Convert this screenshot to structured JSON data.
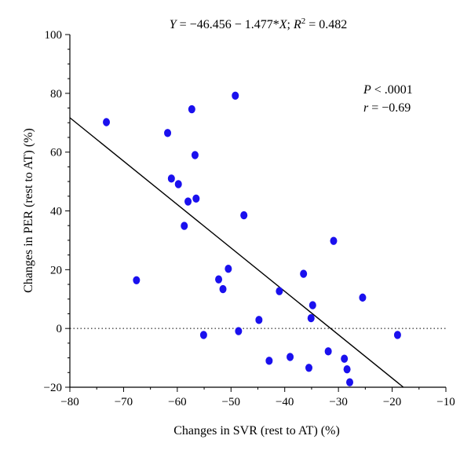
{
  "chart_data": {
    "type": "scatter",
    "title_parts": {
      "y": "Y",
      "eq_mid": " = −46.456 − 1.477*",
      "x": "X",
      "sep": "; ",
      "r": "R",
      "sup": "2",
      "tail": " = 0.482"
    },
    "xlabel": "Changes in SVR (rest to AT) (%)",
    "ylabel": "Changes in PER (rest to AT) (%)",
    "xlim": [
      -80,
      -10
    ],
    "ylim": [
      -20,
      100
    ],
    "xticks": [
      -80,
      -70,
      -60,
      -50,
      -40,
      -30,
      -20,
      -10
    ],
    "yticks": [
      -20,
      0,
      20,
      40,
      60,
      80,
      100
    ],
    "xtick_labels": [
      "−80",
      "−70",
      "−60",
      "−50",
      "−40",
      "−30",
      "−20",
      "−10"
    ],
    "ytick_labels": [
      "−20",
      "0",
      "20",
      "40",
      "60",
      "80",
      "100"
    ],
    "grid": false,
    "reference_line_y": 0,
    "regression": {
      "intercept": -46.456,
      "slope": -1.477
    },
    "annotation_p": {
      "sym": "P",
      "text": " < .0001"
    },
    "annotation_r": {
      "sym": "r",
      "text": " = −0.69"
    },
    "point_color": "#1a10ee",
    "points": [
      [
        -73.2,
        70.2
      ],
      [
        -67.6,
        16.4
      ],
      [
        -61.8,
        66.5
      ],
      [
        -61.1,
        51.0
      ],
      [
        -59.8,
        49.1
      ],
      [
        -58.7,
        34.9
      ],
      [
        -58.0,
        43.2
      ],
      [
        -57.3,
        74.6
      ],
      [
        -56.7,
        59.0
      ],
      [
        -56.5,
        44.2
      ],
      [
        -55.1,
        -2.2
      ],
      [
        -52.3,
        16.7
      ],
      [
        -51.5,
        13.4
      ],
      [
        -50.5,
        20.3
      ],
      [
        -49.2,
        79.2
      ],
      [
        -48.6,
        -0.9
      ],
      [
        -47.6,
        38.5
      ],
      [
        -44.8,
        2.9
      ],
      [
        -42.9,
        -11.0
      ],
      [
        -41.0,
        12.7
      ],
      [
        -39.0,
        -9.7
      ],
      [
        -36.5,
        18.6
      ],
      [
        -35.5,
        -13.4
      ],
      [
        -35.1,
        3.5
      ],
      [
        -34.8,
        7.9
      ],
      [
        -31.9,
        -7.8
      ],
      [
        -30.9,
        29.8
      ],
      [
        -28.9,
        -10.3
      ],
      [
        -28.4,
        -13.9
      ],
      [
        -27.9,
        -18.3
      ],
      [
        -25.5,
        10.5
      ],
      [
        -19.0,
        -2.2
      ]
    ]
  }
}
